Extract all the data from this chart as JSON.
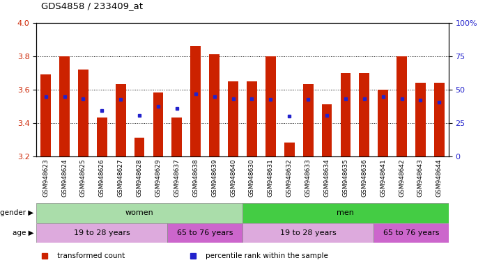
{
  "title": "GDS4858 / 233409_at",
  "samples": [
    "GSM948623",
    "GSM948624",
    "GSM948625",
    "GSM948626",
    "GSM948627",
    "GSM948628",
    "GSM948629",
    "GSM948637",
    "GSM948638",
    "GSM948639",
    "GSM948640",
    "GSM948630",
    "GSM948631",
    "GSM948632",
    "GSM948633",
    "GSM948634",
    "GSM948635",
    "GSM948636",
    "GSM948641",
    "GSM948642",
    "GSM948643",
    "GSM948644"
  ],
  "bar_values": [
    3.69,
    3.8,
    3.72,
    3.43,
    3.63,
    3.31,
    3.58,
    3.43,
    3.86,
    3.81,
    3.65,
    3.65,
    3.8,
    3.28,
    3.63,
    3.51,
    3.7,
    3.7,
    3.6,
    3.8,
    3.64,
    3.64
  ],
  "percentile_values": [
    3.555,
    3.555,
    3.545,
    3.475,
    3.54,
    3.445,
    3.5,
    3.485,
    3.575,
    3.555,
    3.545,
    3.545,
    3.54,
    3.44,
    3.54,
    3.445,
    3.545,
    3.545,
    3.555,
    3.545,
    3.535,
    3.525
  ],
  "y_min": 3.2,
  "y_max": 4.0,
  "y_ticks": [
    3.2,
    3.4,
    3.6,
    3.8,
    4.0
  ],
  "right_y_ticks": [
    0,
    25,
    50,
    75,
    100
  ],
  "bar_color": "#cc2200",
  "percentile_color": "#2222cc",
  "background_color": "#ffffff",
  "tick_label_color_left": "#cc2200",
  "tick_label_color_right": "#2222cc",
  "gender_row": [
    {
      "label": "women",
      "start": 0,
      "end": 11,
      "color": "#aaddaa"
    },
    {
      "label": "men",
      "start": 11,
      "end": 22,
      "color": "#44cc44"
    }
  ],
  "age_row": [
    {
      "label": "19 to 28 years",
      "start": 0,
      "end": 7,
      "color": "#ddaadd"
    },
    {
      "label": "65 to 76 years",
      "start": 7,
      "end": 11,
      "color": "#cc66cc"
    },
    {
      "label": "19 to 28 years",
      "start": 11,
      "end": 18,
      "color": "#ddaadd"
    },
    {
      "label": "65 to 76 years",
      "start": 18,
      "end": 22,
      "color": "#cc66cc"
    }
  ],
  "legend_items": [
    {
      "label": "transformed count",
      "color": "#cc2200",
      "marker": "s"
    },
    {
      "label": "percentile rank within the sample",
      "color": "#2222cc",
      "marker": "s"
    }
  ],
  "gender_label": "gender",
  "age_label": "age",
  "xtick_bg": "#dddddd"
}
